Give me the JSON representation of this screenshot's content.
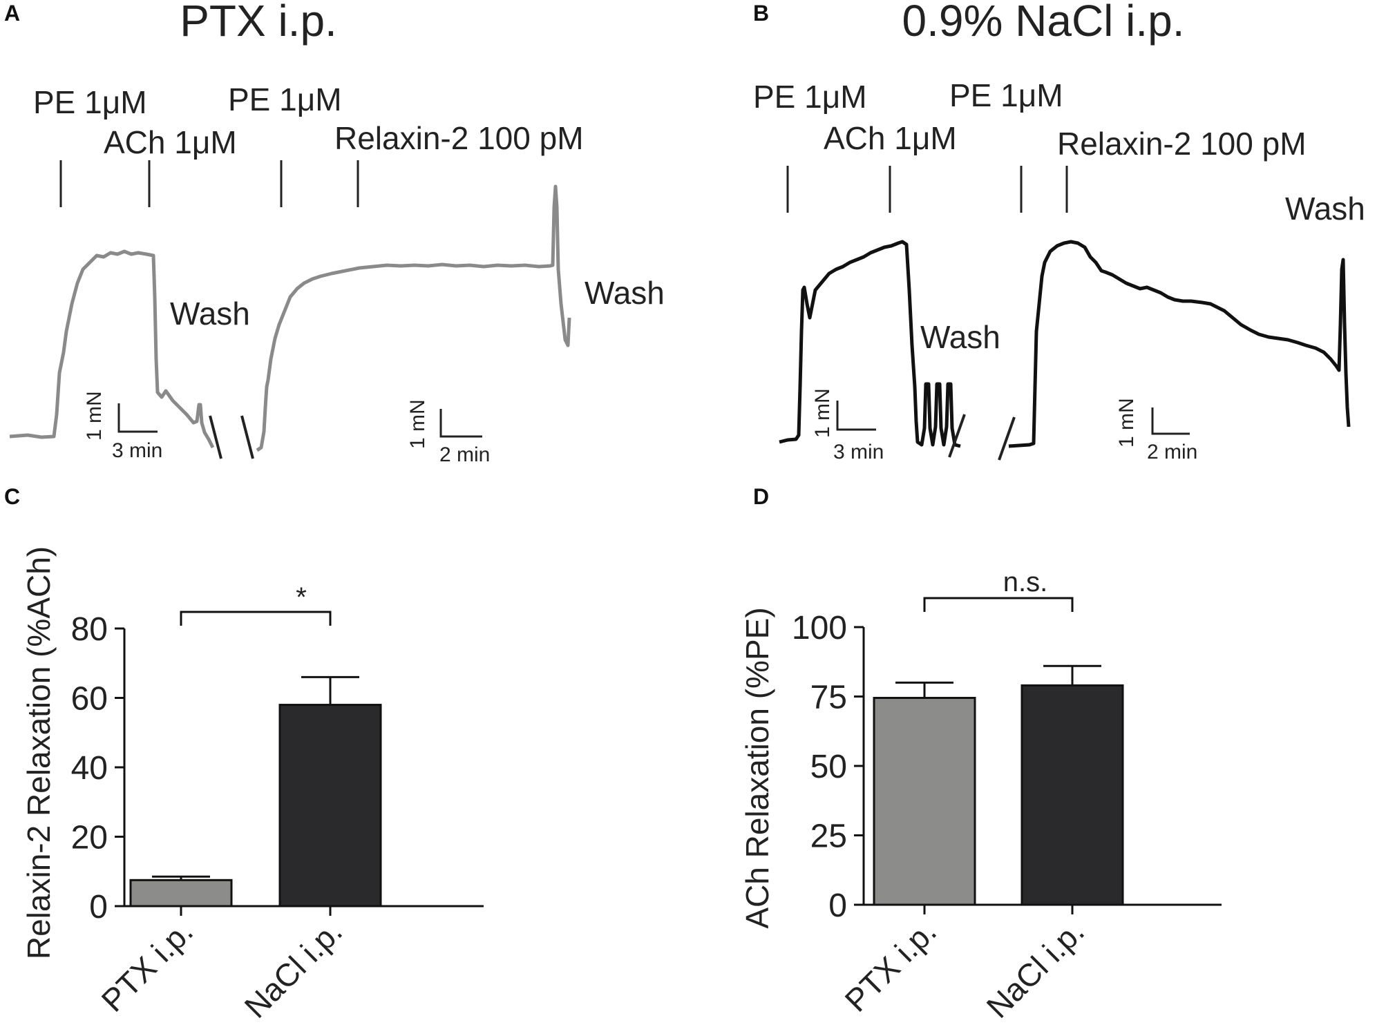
{
  "panel_labels": {
    "a": "A",
    "b": "B",
    "c": "C",
    "d": "D"
  },
  "titles": {
    "a": "PTX i.p.",
    "b": "0.9% NaCl i.p."
  },
  "colors": {
    "ptx": "#8c8c8a",
    "nacl": "#2a2a2c",
    "trace_a": "#8a8a8a",
    "trace_b": "#111111",
    "axis": "#111111"
  },
  "trace_a": {
    "pe_label_1": "PE 1μM",
    "ach_label": "ACh 1μM",
    "pe_label_2": "PE 1μM",
    "relaxin_label": "Relaxin-2 100 pM",
    "wash_label_1": "Wash",
    "wash_label_2": "Wash",
    "scalebar_1": {
      "force": "1 mN",
      "time": "3 min"
    },
    "scalebar_2": {
      "force": "1 mN",
      "time": "2 min"
    }
  },
  "trace_b": {
    "pe_label_1": "PE 1μM",
    "ach_label": "ACh 1μM",
    "pe_label_2": "PE 1μM",
    "relaxin_label": "Relaxin-2 100 pM",
    "wash_label_1": "Wash",
    "wash_label_2": "Wash",
    "scalebar_1": {
      "force": "1 mN",
      "time": "3 min"
    },
    "scalebar_2": {
      "force": "1 mN",
      "time": "2 min"
    }
  },
  "chart_data": [
    {
      "panel": "C",
      "type": "bar",
      "categories": [
        "PTX i.p.",
        "NaCl i.p."
      ],
      "values": [
        7.5,
        58
      ],
      "errors": [
        1,
        8
      ],
      "ylabel": "Relaxin-2 Relaxation (%ACh)",
      "ylim": [
        0,
        80
      ],
      "yticks": [
        0,
        20,
        40,
        60,
        80
      ],
      "significance": "*"
    },
    {
      "panel": "D",
      "type": "bar",
      "categories": [
        "PTX i.p.",
        "NaCl i.p."
      ],
      "values": [
        74.5,
        79
      ],
      "errors": [
        5.5,
        7
      ],
      "ylabel": "ACh Relaxation (%PE)",
      "ylim": [
        0,
        100
      ],
      "yticks": [
        0,
        25,
        50,
        75,
        100
      ],
      "significance": "n.s."
    }
  ]
}
